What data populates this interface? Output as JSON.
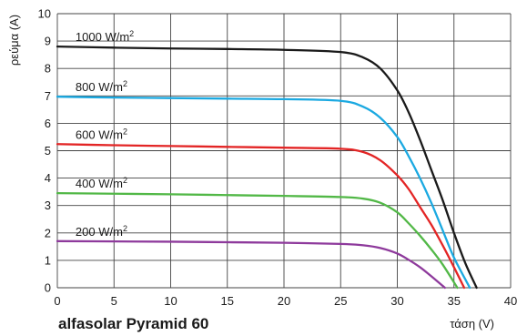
{
  "chart_data": {
    "type": "line",
    "title": "alfasolar Pyramid 60",
    "xlabel": "τάση (V)",
    "ylabel": "ρεύμα (A)",
    "xlim": [
      0,
      40
    ],
    "ylim": [
      0,
      10
    ],
    "x_ticks": [
      "0",
      "5",
      "10",
      "15",
      "20",
      "25",
      "30",
      "35",
      "40"
    ],
    "y_ticks": [
      "0",
      "1",
      "2",
      "3",
      "4",
      "5",
      "6",
      "7",
      "8",
      "9",
      "10"
    ],
    "grid": true,
    "unit_base": "W/m",
    "unit_exp": "2",
    "series": [
      {
        "name": "1000 W/m2",
        "level": "1000",
        "color": "#1a1a1a",
        "x": [
          0,
          5,
          10,
          15,
          20,
          25,
          27,
          28.5,
          30,
          31,
          32,
          33,
          34,
          35,
          36,
          37
        ],
        "y": [
          8.8,
          8.76,
          8.73,
          8.71,
          8.68,
          8.6,
          8.4,
          8.0,
          7.2,
          6.4,
          5.4,
          4.3,
          3.2,
          2.0,
          0.9,
          0
        ]
      },
      {
        "name": "800 W/m2",
        "level": "800",
        "color": "#1ba9e1",
        "x": [
          0,
          5,
          10,
          15,
          20,
          25,
          27,
          28.5,
          30,
          31,
          32,
          33,
          34,
          35,
          36.4
        ],
        "y": [
          6.97,
          6.94,
          6.92,
          6.9,
          6.88,
          6.82,
          6.6,
          6.2,
          5.5,
          4.8,
          4.0,
          3.1,
          2.1,
          1.1,
          0
        ]
      },
      {
        "name": "600 W/m2",
        "level": "600",
        "color": "#e32525",
        "x": [
          0,
          5,
          10,
          15,
          20,
          25,
          27,
          28.5,
          30,
          31,
          32,
          33,
          34,
          35,
          35.9
        ],
        "y": [
          5.24,
          5.2,
          5.17,
          5.14,
          5.11,
          5.07,
          4.95,
          4.65,
          4.1,
          3.6,
          2.95,
          2.3,
          1.55,
          0.75,
          0
        ]
      },
      {
        "name": "400 W/m2",
        "level": "400",
        "color": "#52b847",
        "x": [
          0,
          5,
          10,
          15,
          20,
          25,
          27,
          28.5,
          30,
          31,
          32,
          33,
          34,
          35.3
        ],
        "y": [
          3.45,
          3.43,
          3.41,
          3.38,
          3.35,
          3.31,
          3.25,
          3.1,
          2.75,
          2.35,
          1.9,
          1.4,
          0.85,
          0
        ]
      },
      {
        "name": "200 W/m2",
        "level": "200",
        "color": "#8e3a9c",
        "x": [
          0,
          5,
          10,
          15,
          20,
          25,
          27,
          28.5,
          30,
          31,
          32,
          33,
          34.2
        ],
        "y": [
          1.7,
          1.69,
          1.68,
          1.66,
          1.64,
          1.6,
          1.55,
          1.45,
          1.25,
          1.02,
          0.75,
          0.42,
          0
        ]
      }
    ]
  }
}
